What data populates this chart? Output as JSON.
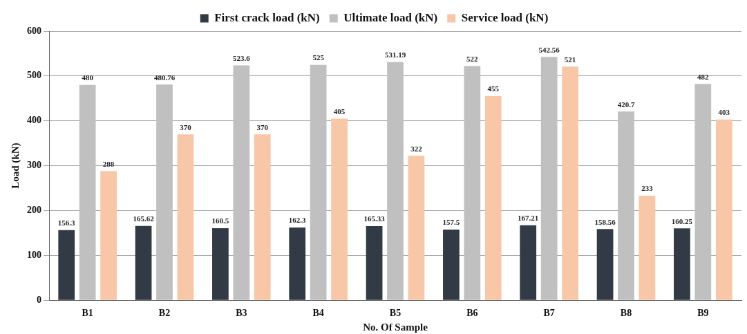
{
  "chart_data": {
    "type": "bar",
    "xlabel": "No. Of Sample",
    "ylabel": "Load (kN)",
    "categories": [
      "B1",
      "B2",
      "B3",
      "B4",
      "B5",
      "B6",
      "B7",
      "B8",
      "B9"
    ],
    "series": [
      {
        "name": "First crack load (kN)",
        "color": "#323a46",
        "values": [
          156.3,
          165.62,
          160.5,
          162.3,
          165.33,
          157.5,
          167.21,
          158.56,
          160.25
        ]
      },
      {
        "name": "Ultimate load (kN)",
        "color": "#c0c0c0",
        "values": [
          480,
          480.76,
          523.6,
          525,
          531.19,
          522,
          542.56,
          420.7,
          482
        ]
      },
      {
        "name": "Service load (kN)",
        "color": "#f7c7a8",
        "values": [
          288,
          370,
          370,
          405,
          322,
          455,
          521,
          233,
          403
        ]
      }
    ],
    "ylim": [
      0,
      600
    ],
    "yticks": [
      0,
      100,
      200,
      300,
      400,
      500,
      600
    ],
    "grid": "y",
    "legend": "top",
    "data_labels": true
  }
}
